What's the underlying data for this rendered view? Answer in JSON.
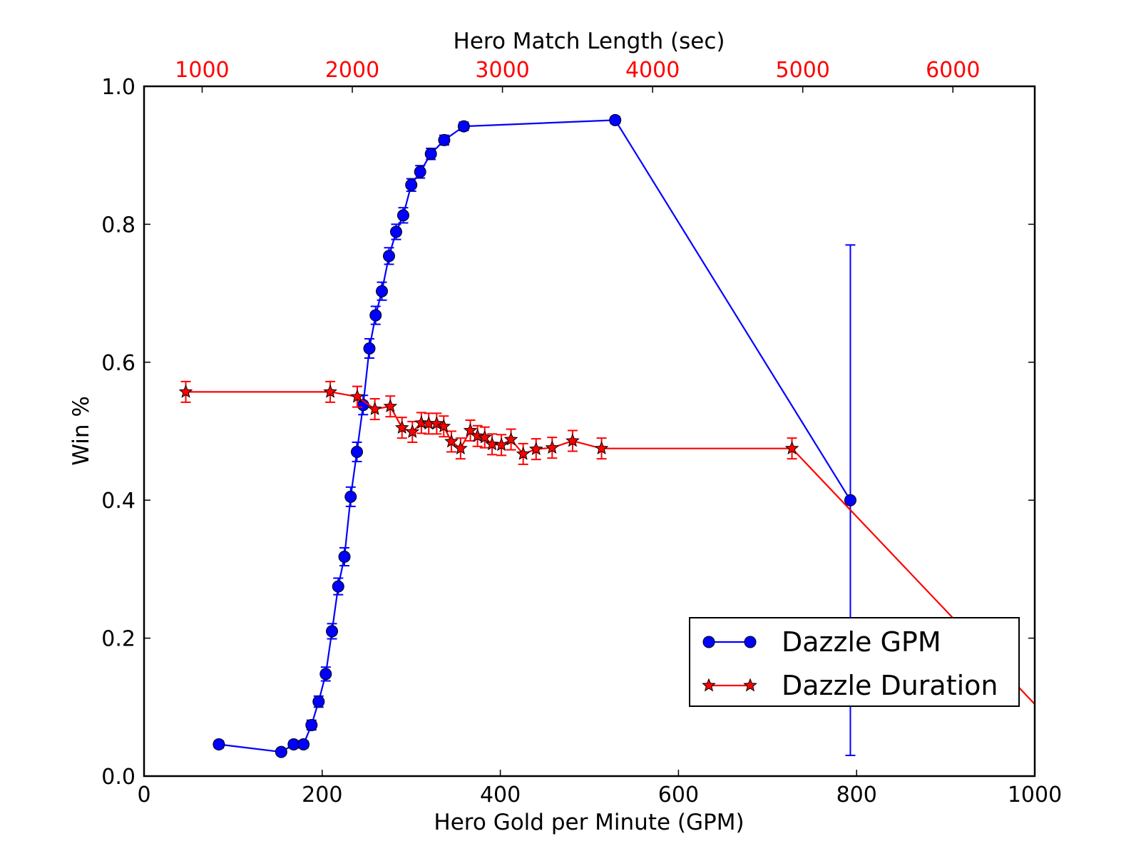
{
  "chart_data": {
    "type": "line",
    "xlabel": "Hero Gold per Minute (GPM)",
    "ylabel": "Win %",
    "x2label": "Hero Match Length (sec)",
    "xlim": [
      0,
      1000
    ],
    "ylim": [
      0.0,
      1.0
    ],
    "x2lim": [
      613,
      6545
    ],
    "xticks": [
      "0",
      "200",
      "400",
      "600",
      "800",
      "1000"
    ],
    "yticks": [
      "0.0",
      "0.2",
      "0.4",
      "0.6",
      "0.8",
      "1.0"
    ],
    "x2ticks": [
      "1000",
      "2000",
      "3000",
      "4000",
      "5000",
      "6000"
    ],
    "x2tick_color": "#ff0000",
    "grid": false,
    "legend_position": "lower-right",
    "series": [
      {
        "name": "Dazzle GPM",
        "axis": "bottom",
        "color": "#0000ff",
        "marker": "circle",
        "points": [
          {
            "x": 84,
            "y": 0.046,
            "err": 0.005
          },
          {
            "x": 154,
            "y": 0.035,
            "err": 0.004
          },
          {
            "x": 168,
            "y": 0.046,
            "err": 0.005
          },
          {
            "x": 179,
            "y": 0.046,
            "err": 0.005
          },
          {
            "x": 188,
            "y": 0.074,
            "err": 0.007
          },
          {
            "x": 196,
            "y": 0.108,
            "err": 0.008
          },
          {
            "x": 204,
            "y": 0.148,
            "err": 0.01
          },
          {
            "x": 211,
            "y": 0.21,
            "err": 0.011
          },
          {
            "x": 218,
            "y": 0.275,
            "err": 0.012
          },
          {
            "x": 225,
            "y": 0.318,
            "err": 0.013
          },
          {
            "x": 232,
            "y": 0.405,
            "err": 0.014
          },
          {
            "x": 239,
            "y": 0.47,
            "err": 0.014
          },
          {
            "x": 246,
            "y": 0.538,
            "err": 0.014
          },
          {
            "x": 253,
            "y": 0.62,
            "err": 0.014
          },
          {
            "x": 260,
            "y": 0.668,
            "err": 0.013
          },
          {
            "x": 267,
            "y": 0.703,
            "err": 0.013
          },
          {
            "x": 275,
            "y": 0.754,
            "err": 0.012
          },
          {
            "x": 283,
            "y": 0.789,
            "err": 0.011
          },
          {
            "x": 291,
            "y": 0.813,
            "err": 0.011
          },
          {
            "x": 300,
            "y": 0.857,
            "err": 0.009
          },
          {
            "x": 310,
            "y": 0.876,
            "err": 0.009
          },
          {
            "x": 322,
            "y": 0.902,
            "err": 0.008
          },
          {
            "x": 337,
            "y": 0.922,
            "err": 0.007
          },
          {
            "x": 359,
            "y": 0.942,
            "err": 0.006
          },
          {
            "x": 529,
            "y": 0.951,
            "err": 0.005
          },
          {
            "x": 793,
            "y": 0.4,
            "err": 0.37
          }
        ]
      },
      {
        "name": "Dazzle Duration",
        "axis": "top",
        "color": "#ff0000",
        "marker": "star",
        "points": [
          {
            "x": 891,
            "y": 0.557,
            "err": 0.015
          },
          {
            "x": 1853,
            "y": 0.557,
            "err": 0.015
          },
          {
            "x": 2033,
            "y": 0.55,
            "err": 0.015
          },
          {
            "x": 2150,
            "y": 0.532,
            "err": 0.015
          },
          {
            "x": 2253,
            "y": 0.536,
            "err": 0.015
          },
          {
            "x": 2331,
            "y": 0.505,
            "err": 0.015
          },
          {
            "x": 2400,
            "y": 0.499,
            "err": 0.015
          },
          {
            "x": 2460,
            "y": 0.512,
            "err": 0.015
          },
          {
            "x": 2509,
            "y": 0.511,
            "err": 0.015
          },
          {
            "x": 2562,
            "y": 0.511,
            "err": 0.015
          },
          {
            "x": 2609,
            "y": 0.507,
            "err": 0.015
          },
          {
            "x": 2660,
            "y": 0.485,
            "err": 0.015
          },
          {
            "x": 2721,
            "y": 0.475,
            "err": 0.015
          },
          {
            "x": 2786,
            "y": 0.501,
            "err": 0.015
          },
          {
            "x": 2834,
            "y": 0.493,
            "err": 0.015
          },
          {
            "x": 2882,
            "y": 0.491,
            "err": 0.015
          },
          {
            "x": 2931,
            "y": 0.481,
            "err": 0.015
          },
          {
            "x": 2993,
            "y": 0.48,
            "err": 0.015
          },
          {
            "x": 3057,
            "y": 0.488,
            "err": 0.015
          },
          {
            "x": 3138,
            "y": 0.467,
            "err": 0.015
          },
          {
            "x": 3224,
            "y": 0.474,
            "err": 0.015
          },
          {
            "x": 3331,
            "y": 0.476,
            "err": 0.015
          },
          {
            "x": 3467,
            "y": 0.486,
            "err": 0.015
          },
          {
            "x": 3660,
            "y": 0.475,
            "err": 0.015
          },
          {
            "x": 4928,
            "y": 0.475,
            "err": 0.015
          },
          {
            "x": 7000,
            "y": 0.0,
            "err": 0.0
          }
        ]
      }
    ]
  }
}
